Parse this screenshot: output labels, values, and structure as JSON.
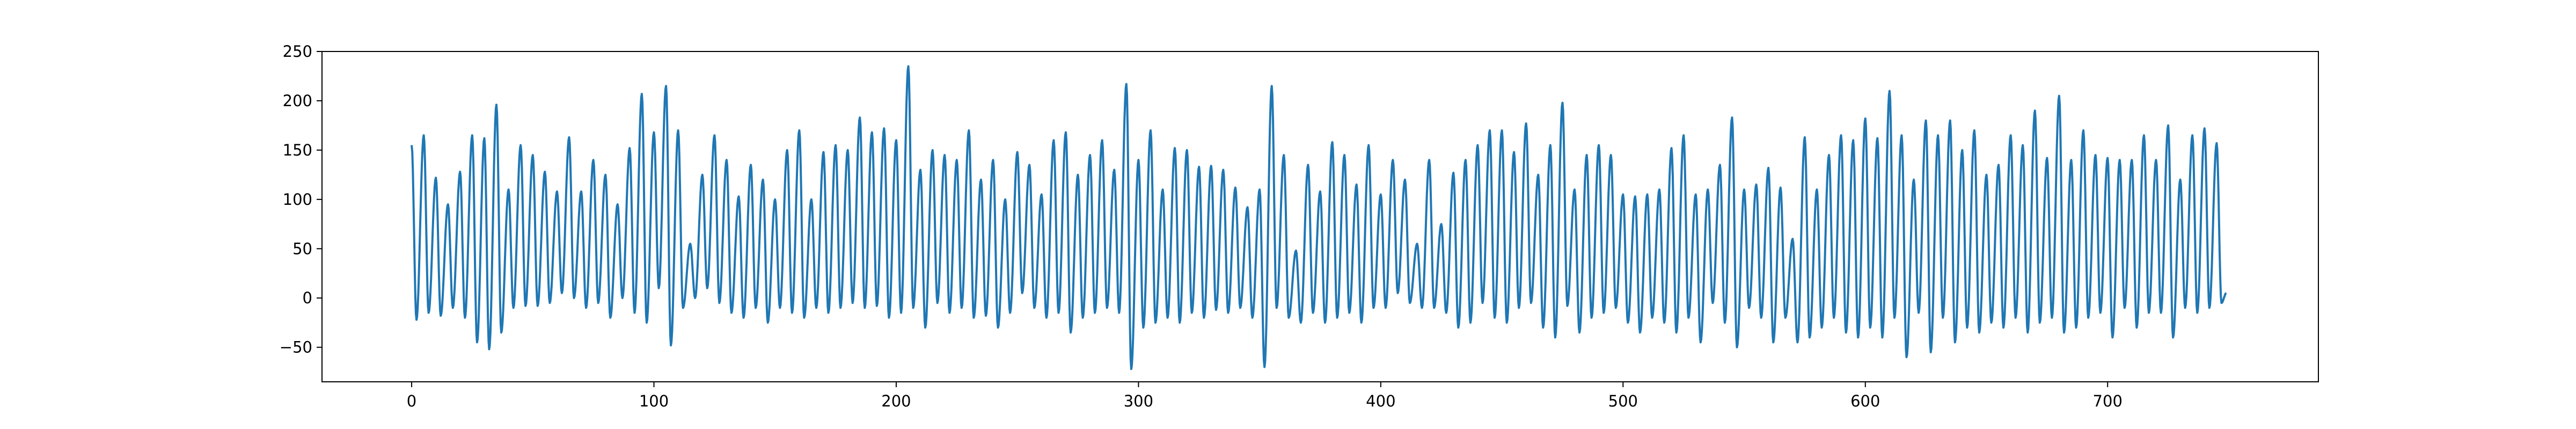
{
  "chart_data": {
    "type": "line",
    "title": "",
    "xlabel": "",
    "ylabel": "",
    "xlim": [
      -37,
      787
    ],
    "ylim": [
      -85,
      250
    ],
    "xticks": [
      0,
      100,
      200,
      300,
      400,
      500,
      600,
      700
    ],
    "yticks": [
      -50,
      0,
      50,
      100,
      150,
      200,
      250
    ],
    "grid": false,
    "series": [
      {
        "color": "#1f77b4",
        "peaks": [
          [
            0,
            155
          ],
          [
            5,
            165
          ],
          [
            10,
            122
          ],
          [
            15,
            95
          ],
          [
            20,
            128
          ],
          [
            25,
            165
          ],
          [
            30,
            162
          ],
          [
            35,
            196
          ],
          [
            40,
            110
          ],
          [
            45,
            155
          ],
          [
            50,
            145
          ],
          [
            55,
            128
          ],
          [
            60,
            108
          ],
          [
            65,
            163
          ],
          [
            70,
            108
          ],
          [
            75,
            140
          ],
          [
            80,
            125
          ],
          [
            85,
            95
          ],
          [
            90,
            152
          ],
          [
            95,
            207
          ],
          [
            100,
            168
          ],
          [
            105,
            215
          ],
          [
            110,
            170
          ],
          [
            115,
            55
          ],
          [
            120,
            125
          ],
          [
            125,
            165
          ],
          [
            130,
            140
          ],
          [
            135,
            103
          ],
          [
            140,
            135
          ],
          [
            145,
            120
          ],
          [
            150,
            100
          ],
          [
            155,
            150
          ],
          [
            160,
            170
          ],
          [
            165,
            100
          ],
          [
            170,
            148
          ],
          [
            175,
            155
          ],
          [
            180,
            150
          ],
          [
            185,
            183
          ],
          [
            190,
            168
          ],
          [
            195,
            172
          ],
          [
            200,
            160
          ],
          [
            205,
            235
          ],
          [
            210,
            130
          ],
          [
            215,
            150
          ],
          [
            220,
            145
          ],
          [
            225,
            140
          ],
          [
            230,
            170
          ],
          [
            235,
            120
          ],
          [
            240,
            140
          ],
          [
            245,
            100
          ],
          [
            250,
            148
          ],
          [
            255,
            135
          ],
          [
            260,
            105
          ],
          [
            265,
            160
          ],
          [
            270,
            168
          ],
          [
            275,
            125
          ],
          [
            280,
            145
          ],
          [
            285,
            160
          ],
          [
            290,
            130
          ],
          [
            295,
            217
          ],
          [
            300,
            140
          ],
          [
            305,
            170
          ],
          [
            310,
            110
          ],
          [
            315,
            152
          ],
          [
            320,
            150
          ],
          [
            325,
            133
          ],
          [
            330,
            134
          ],
          [
            335,
            130
          ],
          [
            340,
            112
          ],
          [
            345,
            92
          ],
          [
            350,
            110
          ],
          [
            355,
            215
          ],
          [
            360,
            145
          ],
          [
            365,
            48
          ],
          [
            370,
            135
          ],
          [
            375,
            108
          ],
          [
            380,
            158
          ],
          [
            385,
            145
          ],
          [
            390,
            115
          ],
          [
            395,
            155
          ],
          [
            400,
            105
          ],
          [
            405,
            140
          ],
          [
            410,
            120
          ],
          [
            415,
            55
          ],
          [
            420,
            140
          ],
          [
            425,
            75
          ],
          [
            430,
            127
          ],
          [
            435,
            140
          ],
          [
            440,
            155
          ],
          [
            445,
            170
          ],
          [
            450,
            170
          ],
          [
            455,
            148
          ],
          [
            460,
            177
          ],
          [
            465,
            125
          ],
          [
            470,
            155
          ],
          [
            475,
            198
          ],
          [
            480,
            110
          ],
          [
            485,
            145
          ],
          [
            490,
            155
          ],
          [
            495,
            145
          ],
          [
            500,
            105
          ],
          [
            505,
            103
          ],
          [
            510,
            105
          ],
          [
            515,
            110
          ],
          [
            520,
            152
          ],
          [
            525,
            165
          ],
          [
            530,
            105
          ],
          [
            535,
            110
          ],
          [
            540,
            135
          ],
          [
            545,
            183
          ],
          [
            550,
            110
          ],
          [
            555,
            115
          ],
          [
            560,
            132
          ],
          [
            565,
            112
          ],
          [
            570,
            60
          ],
          [
            575,
            163
          ],
          [
            580,
            110
          ],
          [
            585,
            145
          ],
          [
            590,
            165
          ],
          [
            595,
            160
          ],
          [
            600,
            182
          ],
          [
            605,
            162
          ],
          [
            610,
            210
          ],
          [
            615,
            165
          ],
          [
            620,
            120
          ],
          [
            625,
            180
          ],
          [
            630,
            165
          ],
          [
            635,
            180
          ],
          [
            640,
            150
          ],
          [
            645,
            170
          ],
          [
            650,
            125
          ],
          [
            655,
            135
          ],
          [
            660,
            165
          ],
          [
            665,
            155
          ],
          [
            670,
            190
          ],
          [
            675,
            142
          ],
          [
            680,
            205
          ],
          [
            685,
            140
          ],
          [
            690,
            170
          ],
          [
            695,
            145
          ],
          [
            700,
            142
          ],
          [
            705,
            140
          ],
          [
            710,
            140
          ],
          [
            715,
            165
          ],
          [
            720,
            140
          ],
          [
            725,
            175
          ],
          [
            730,
            120
          ],
          [
            735,
            165
          ],
          [
            740,
            172
          ],
          [
            745,
            157
          ]
        ],
        "troughs": [
          [
            2,
            -22
          ],
          [
            7,
            -15
          ],
          [
            12,
            -18
          ],
          [
            17,
            -10
          ],
          [
            22,
            -20
          ],
          [
            27,
            -45
          ],
          [
            32,
            -52
          ],
          [
            37,
            -35
          ],
          [
            42,
            -10
          ],
          [
            47,
            -8
          ],
          [
            52,
            -8
          ],
          [
            57,
            -5
          ],
          [
            62,
            5
          ],
          [
            67,
            0
          ],
          [
            72,
            -10
          ],
          [
            77,
            -5
          ],
          [
            82,
            -20
          ],
          [
            87,
            0
          ],
          [
            92,
            -15
          ],
          [
            97,
            -25
          ],
          [
            102,
            10
          ],
          [
            107,
            -48
          ],
          [
            112,
            -10
          ],
          [
            117,
            0
          ],
          [
            122,
            10
          ],
          [
            127,
            -5
          ],
          [
            132,
            -15
          ],
          [
            137,
            -20
          ],
          [
            142,
            -10
          ],
          [
            147,
            -25
          ],
          [
            152,
            -10
          ],
          [
            157,
            -15
          ],
          [
            162,
            -20
          ],
          [
            167,
            -10
          ],
          [
            172,
            -15
          ],
          [
            177,
            -10
          ],
          [
            182,
            -5
          ],
          [
            187,
            -10
          ],
          [
            192,
            -8
          ],
          [
            197,
            -20
          ],
          [
            202,
            -15
          ],
          [
            207,
            -10
          ],
          [
            212,
            -30
          ],
          [
            217,
            -5
          ],
          [
            222,
            -15
          ],
          [
            227,
            -10
          ],
          [
            232,
            -20
          ],
          [
            237,
            -18
          ],
          [
            242,
            -30
          ],
          [
            247,
            -15
          ],
          [
            252,
            5
          ],
          [
            257,
            -10
          ],
          [
            262,
            -20
          ],
          [
            267,
            -15
          ],
          [
            272,
            -35
          ],
          [
            277,
            -20
          ],
          [
            282,
            -15
          ],
          [
            287,
            -10
          ],
          [
            292,
            -15
          ],
          [
            297,
            -72
          ],
          [
            302,
            -30
          ],
          [
            307,
            -25
          ],
          [
            312,
            -20
          ],
          [
            317,
            -25
          ],
          [
            322,
            -15
          ],
          [
            327,
            -20
          ],
          [
            332,
            -12
          ],
          [
            337,
            -15
          ],
          [
            342,
            -10
          ],
          [
            347,
            -20
          ],
          [
            352,
            -70
          ],
          [
            357,
            -10
          ],
          [
            362,
            -20
          ],
          [
            367,
            -25
          ],
          [
            372,
            -15
          ],
          [
            377,
            -25
          ],
          [
            382,
            -20
          ],
          [
            387,
            -15
          ],
          [
            392,
            -25
          ],
          [
            397,
            -10
          ],
          [
            402,
            -10
          ],
          [
            407,
            5
          ],
          [
            412,
            -5
          ],
          [
            417,
            -10
          ],
          [
            422,
            -10
          ],
          [
            427,
            -15
          ],
          [
            432,
            -30
          ],
          [
            437,
            -25
          ],
          [
            442,
            -5
          ],
          [
            447,
            -20
          ],
          [
            452,
            -25
          ],
          [
            457,
            -10
          ],
          [
            462,
            -5
          ],
          [
            467,
            -30
          ],
          [
            472,
            -40
          ],
          [
            477,
            -8
          ],
          [
            482,
            -35
          ],
          [
            487,
            -20
          ],
          [
            492,
            -15
          ],
          [
            497,
            -10
          ],
          [
            502,
            -25
          ],
          [
            507,
            -35
          ],
          [
            512,
            -20
          ],
          [
            517,
            -25
          ],
          [
            522,
            -35
          ],
          [
            527,
            -20
          ],
          [
            532,
            -45
          ],
          [
            537,
            -5
          ],
          [
            542,
            -25
          ],
          [
            547,
            -50
          ],
          [
            552,
            -10
          ],
          [
            557,
            -20
          ],
          [
            562,
            -45
          ],
          [
            567,
            -20
          ],
          [
            572,
            -45
          ],
          [
            577,
            -40
          ],
          [
            582,
            -30
          ],
          [
            587,
            -20
          ],
          [
            592,
            -35
          ],
          [
            597,
            -40
          ],
          [
            602,
            -30
          ],
          [
            607,
            -40
          ],
          [
            612,
            -20
          ],
          [
            617,
            -60
          ],
          [
            622,
            -15
          ],
          [
            627,
            -55
          ],
          [
            632,
            -20
          ],
          [
            637,
            -45
          ],
          [
            642,
            -30
          ],
          [
            647,
            -35
          ],
          [
            652,
            -25
          ],
          [
            657,
            -30
          ],
          [
            662,
            -20
          ],
          [
            667,
            -35
          ],
          [
            672,
            -25
          ],
          [
            677,
            -20
          ],
          [
            682,
            -35
          ],
          [
            687,
            -30
          ],
          [
            692,
            -20
          ],
          [
            697,
            -15
          ],
          [
            702,
            -40
          ],
          [
            707,
            -10
          ],
          [
            712,
            -30
          ],
          [
            717,
            -15
          ],
          [
            722,
            -15
          ],
          [
            727,
            -40
          ],
          [
            732,
            -10
          ],
          [
            737,
            -15
          ],
          [
            742,
            -10
          ],
          [
            747,
            -5
          ]
        ],
        "end": [
          749,
          5
        ]
      }
    ]
  }
}
